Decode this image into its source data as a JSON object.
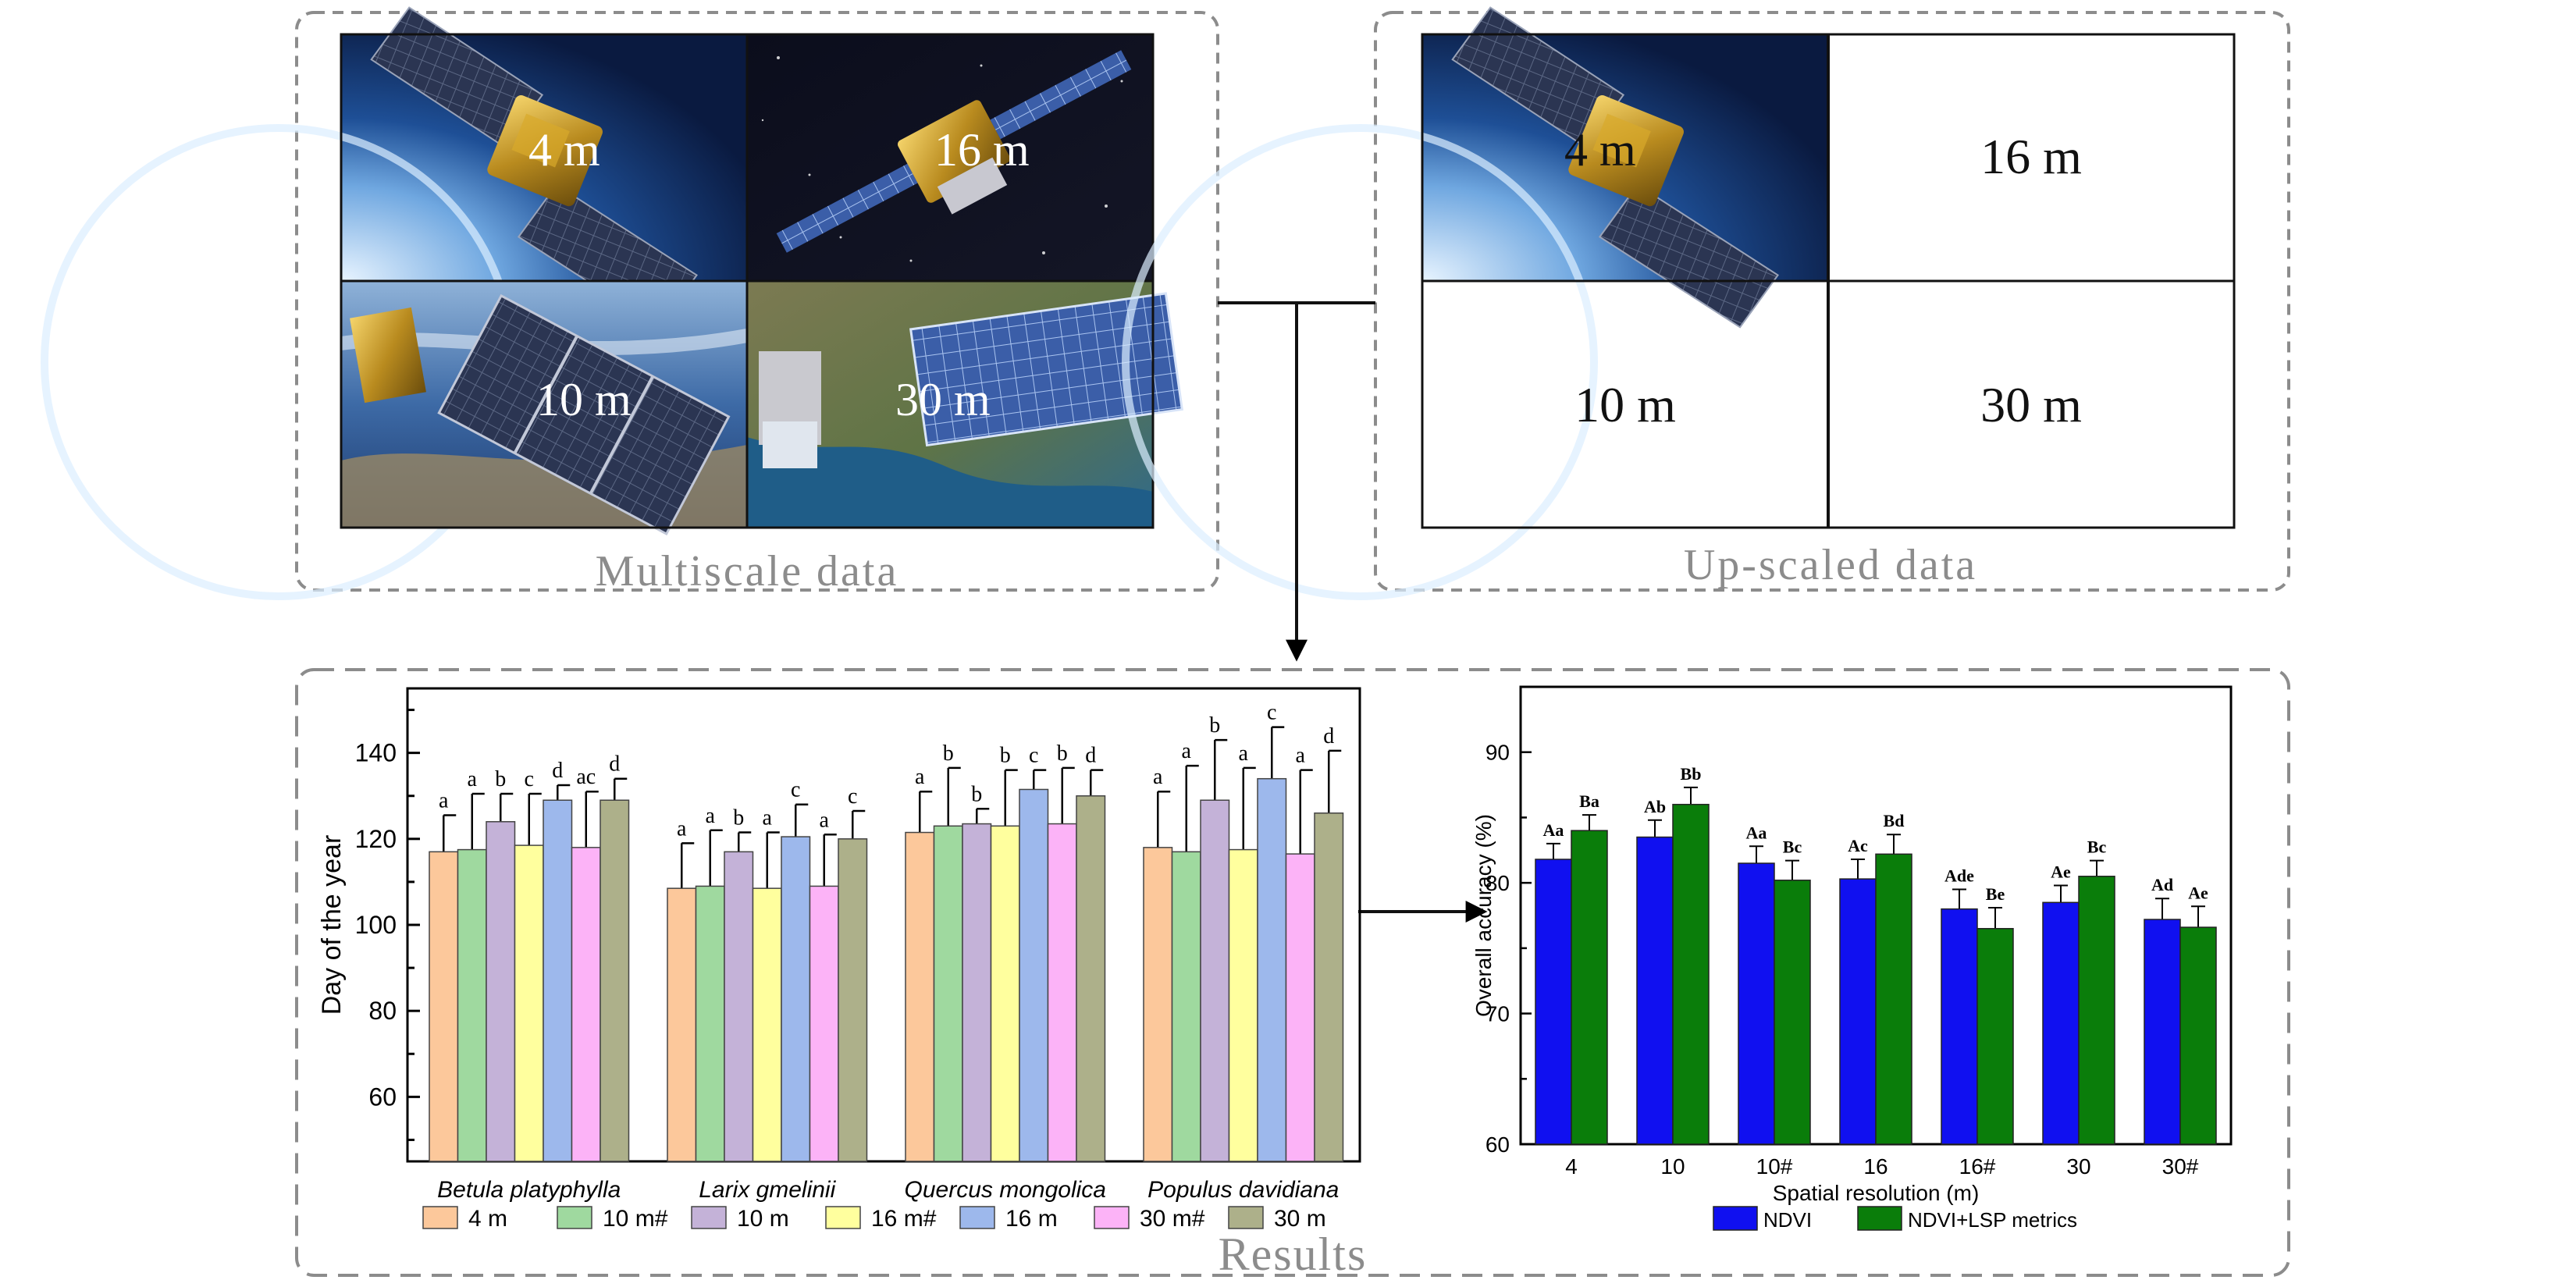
{
  "panels": {
    "multiscale": {
      "caption": "Multiscale data",
      "tiles": [
        {
          "label": "4 m",
          "scene": "satellite-gold-over-earth"
        },
        {
          "label": "16 m",
          "scene": "satellite-in-space"
        },
        {
          "label": "10 m",
          "scene": "satellite-over-earth-blue-panels"
        },
        {
          "label": "30 m",
          "scene": "satellite-over-coast"
        }
      ]
    },
    "upscaled": {
      "caption": "Up-scaled data",
      "tiles": [
        {
          "label": "4 m",
          "scene": "satellite-gold-over-earth"
        },
        {
          "label": "16 m"
        },
        {
          "label": "10 m"
        },
        {
          "label": "30 m"
        }
      ]
    },
    "results": {
      "caption": "Results"
    }
  },
  "colors": {
    "border": "#8c8c8c",
    "caption": "#8c8c8c",
    "ndvi": "#1010f0",
    "ndvi_lsp": "#0a7d0a"
  },
  "chart_data": [
    {
      "type": "bar",
      "ylabel": "Day of the year",
      "ylim": [
        45,
        155
      ],
      "yticks": [
        60,
        80,
        100,
        120,
        140
      ],
      "categories": [
        "Betula platyphylla",
        "Larix gmelinii",
        "Quercus mongolica",
        "Populus davidiana"
      ],
      "series": [
        {
          "name": "4 m",
          "color": "#fcc89b",
          "values": [
            117,
            108.5,
            121.5,
            118
          ],
          "errors": [
            8.5,
            10.5,
            9.5,
            13
          ],
          "letters": [
            "a",
            "a",
            "a",
            "a"
          ]
        },
        {
          "name": "10 m#",
          "color": "#9fd99f",
          "values": [
            117.5,
            109,
            123,
            117
          ],
          "errors": [
            13,
            13,
            13.5,
            20
          ],
          "letters": [
            "a",
            "a",
            "b",
            "a"
          ]
        },
        {
          "name": "10 m",
          "color": "#c4b2d8",
          "values": [
            124,
            117,
            123.5,
            129
          ],
          "errors": [
            6.5,
            4.5,
            3.5,
            14
          ],
          "letters": [
            "b",
            "b",
            "b",
            "b"
          ]
        },
        {
          "name": "16 m#",
          "color": "#ffff9e",
          "values": [
            118.5,
            108.5,
            123,
            117.5
          ],
          "errors": [
            12,
            13,
            13,
            19
          ],
          "letters": [
            "c",
            "a",
            "b",
            "a"
          ]
        },
        {
          "name": "16 m",
          "color": "#9db8ec",
          "values": [
            129,
            120.5,
            131.5,
            134
          ],
          "errors": [
            3.5,
            7.5,
            4.5,
            12
          ],
          "letters": [
            "d",
            "c",
            "c",
            "c"
          ]
        },
        {
          "name": "30 m#",
          "color": "#fcb3f7",
          "values": [
            118,
            109,
            123.5,
            116.5
          ],
          "errors": [
            13,
            12,
            13,
            19.5
          ],
          "letters": [
            "ac",
            "a",
            "b",
            "a"
          ]
        },
        {
          "name": "30 m",
          "color": "#adb08a",
          "values": [
            129,
            120,
            130,
            126
          ],
          "errors": [
            5,
            6.5,
            6,
            14.5
          ],
          "letters": [
            "d",
            "c",
            "d",
            "d"
          ]
        }
      ],
      "legend": "bottom"
    },
    {
      "type": "bar",
      "xlabel": "Spatial resolution (m)",
      "ylabel": "Overall accuracy (%)",
      "ylim": [
        60,
        95
      ],
      "yticks": [
        60,
        70,
        80,
        90
      ],
      "categories": [
        "4",
        "10",
        "10#",
        "16",
        "16#",
        "30",
        "30#"
      ],
      "series": [
        {
          "name": "NDVI",
          "color": "#1010f0",
          "values": [
            81.8,
            83.5,
            81.5,
            80.3,
            78,
            78.5,
            77.2
          ],
          "errors": [
            1.2,
            1.3,
            1.3,
            1.5,
            1.5,
            1.3,
            1.6
          ],
          "letters": [
            "Aa",
            "Ab",
            "Aa",
            "Ac",
            "Ade",
            "Ae",
            "Ad"
          ]
        },
        {
          "name": "NDVI+LSP metrics",
          "color": "#0a7d0a",
          "values": [
            84,
            86,
            80.2,
            82.2,
            76.5,
            80.5,
            76.6
          ],
          "errors": [
            1.2,
            1.3,
            1.5,
            1.5,
            1.6,
            1.2,
            1.6
          ],
          "letters": [
            "Ba",
            "Bb",
            "Bc",
            "Bd",
            "Be",
            "Bc",
            "Ae"
          ]
        }
      ],
      "legend": "bottom"
    }
  ]
}
